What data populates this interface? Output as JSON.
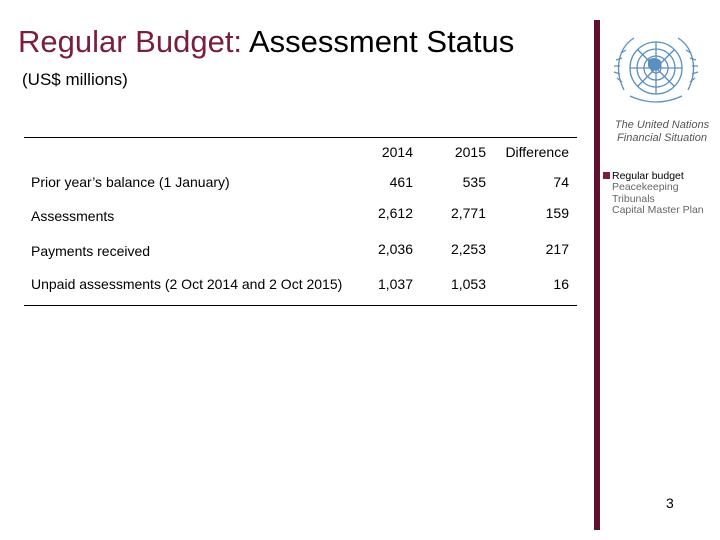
{
  "title": {
    "accent": "Regular Budget:",
    "rest": " Assessment Status"
  },
  "subtitle": "(US$ millions)",
  "side_panel": {
    "caption": "The United Nations Financial Situation",
    "legend": [
      {
        "label": "Regular budget",
        "active": true
      },
      {
        "label": "Peacekeeping",
        "active": false
      },
      {
        "label": "Tribunals",
        "active": false
      },
      {
        "label": "Capital Master Plan",
        "active": false
      }
    ],
    "colors": {
      "accent": "#7a1e3c",
      "bar": "#5c1230"
    },
    "logo_icon": "un-emblem-icon"
  },
  "table": {
    "headers": {
      "y2014": "2014",
      "y2015": "2015",
      "diff": "Difference"
    },
    "rows": [
      {
        "label": "Prior year’s balance (1 January)",
        "y2014": "461",
        "y2015": "535",
        "diff": "74"
      },
      {
        "label": "Assessments",
        "y2014": "2,612",
        "y2015": "2,771",
        "diff": "159"
      },
      {
        "label": "Payments received",
        "y2014": "2,036",
        "y2015": "2,253",
        "diff": "217"
      },
      {
        "label": "Unpaid assessments (2 Oct 2014 and 2 Oct 2015)",
        "y2014": "1,037",
        "y2015": "1,053",
        "diff": "16"
      }
    ]
  },
  "page_number": "3"
}
